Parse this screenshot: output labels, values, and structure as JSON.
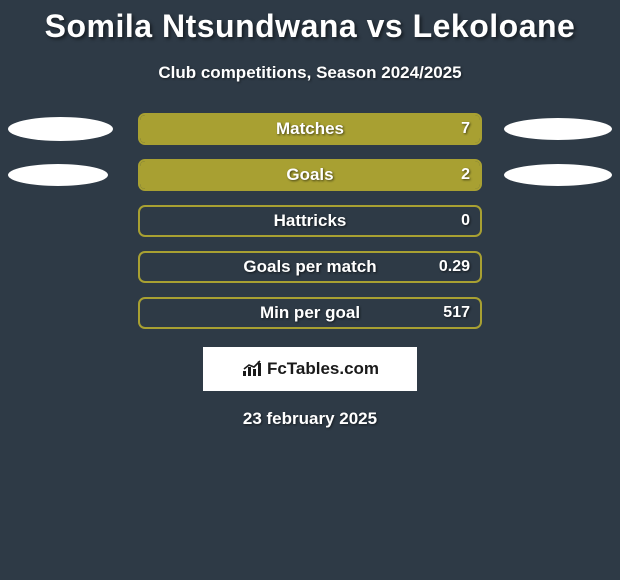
{
  "header": {
    "title": "Somila Ntsundwana vs Lekoloane",
    "subtitle": "Club competitions, Season 2024/2025"
  },
  "chart": {
    "type": "bar",
    "background_color": "#2e3a46",
    "bar_border_color": "#a8a032",
    "bar_fill_color": "#a8a032",
    "ellipse_color": "#ffffff",
    "label_fontsize": 17,
    "value_fontsize": 16,
    "stats": [
      {
        "label": "Matches",
        "value": "7",
        "fill_percent": 100,
        "ellipse_left_w": 105,
        "ellipse_left_h": 24,
        "ellipse_right_w": 108,
        "ellipse_right_h": 22
      },
      {
        "label": "Goals",
        "value": "2",
        "fill_percent": 100,
        "ellipse_left_w": 100,
        "ellipse_left_h": 22,
        "ellipse_right_w": 108,
        "ellipse_right_h": 22
      },
      {
        "label": "Hattricks",
        "value": "0",
        "fill_percent": 0,
        "ellipse_left_w": 0,
        "ellipse_left_h": 0,
        "ellipse_right_w": 0,
        "ellipse_right_h": 0
      },
      {
        "label": "Goals per match",
        "value": "0.29",
        "fill_percent": 0,
        "ellipse_left_w": 0,
        "ellipse_left_h": 0,
        "ellipse_right_w": 0,
        "ellipse_right_h": 0
      },
      {
        "label": "Min per goal",
        "value": "517",
        "fill_percent": 0,
        "ellipse_left_w": 0,
        "ellipse_left_h": 0,
        "ellipse_right_w": 0,
        "ellipse_right_h": 0
      }
    ]
  },
  "footer": {
    "logo_text": "FcTables.com",
    "date": "23 february 2025"
  }
}
